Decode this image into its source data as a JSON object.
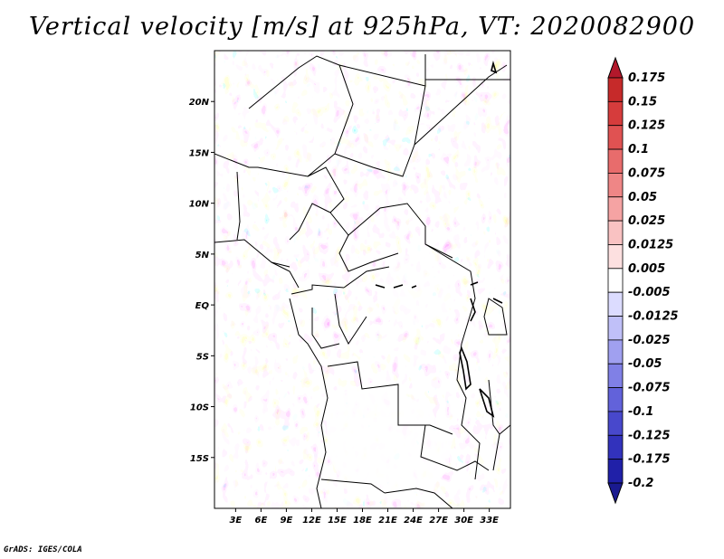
{
  "title": "Vertical velocity [m/s] at 925hPa, VT: 2020082900",
  "credit": "GrADS: IGES/COLA",
  "map": {
    "lat_labels": [
      "20N",
      "15N",
      "10N",
      "5N",
      "EQ",
      "5S",
      "10S",
      "15S"
    ],
    "lon_labels": [
      "3E",
      "6E",
      "9E",
      "12E",
      "15E",
      "18E",
      "21E",
      "24E",
      "27E",
      "30E",
      "33E"
    ],
    "lat_range": [
      -20,
      25
    ],
    "lon_range": [
      0.5,
      35.5
    ]
  },
  "colorbar": {
    "labels": [
      "0.175",
      "0.15",
      "0.125",
      "0.1",
      "0.075",
      "0.05",
      "0.025",
      "0.0125",
      "0.005",
      "-0.005",
      "-0.0125",
      "-0.025",
      "-0.05",
      "-0.075",
      "-0.1",
      "-0.125",
      "-0.175",
      "-0.2"
    ],
    "colors": [
      "#b2182b",
      "#c62a2a",
      "#d63c3c",
      "#e05252",
      "#e86c6c",
      "#ef8686",
      "#f5a3a3",
      "#f9c2c2",
      "#fde0e0",
      "#ffffff",
      "#dcdcff",
      "#c0c0f8",
      "#a0a0f0",
      "#8080e6",
      "#6262da",
      "#4848cc",
      "#3232bc",
      "#2020a8",
      "#1a1a90"
    ]
  }
}
